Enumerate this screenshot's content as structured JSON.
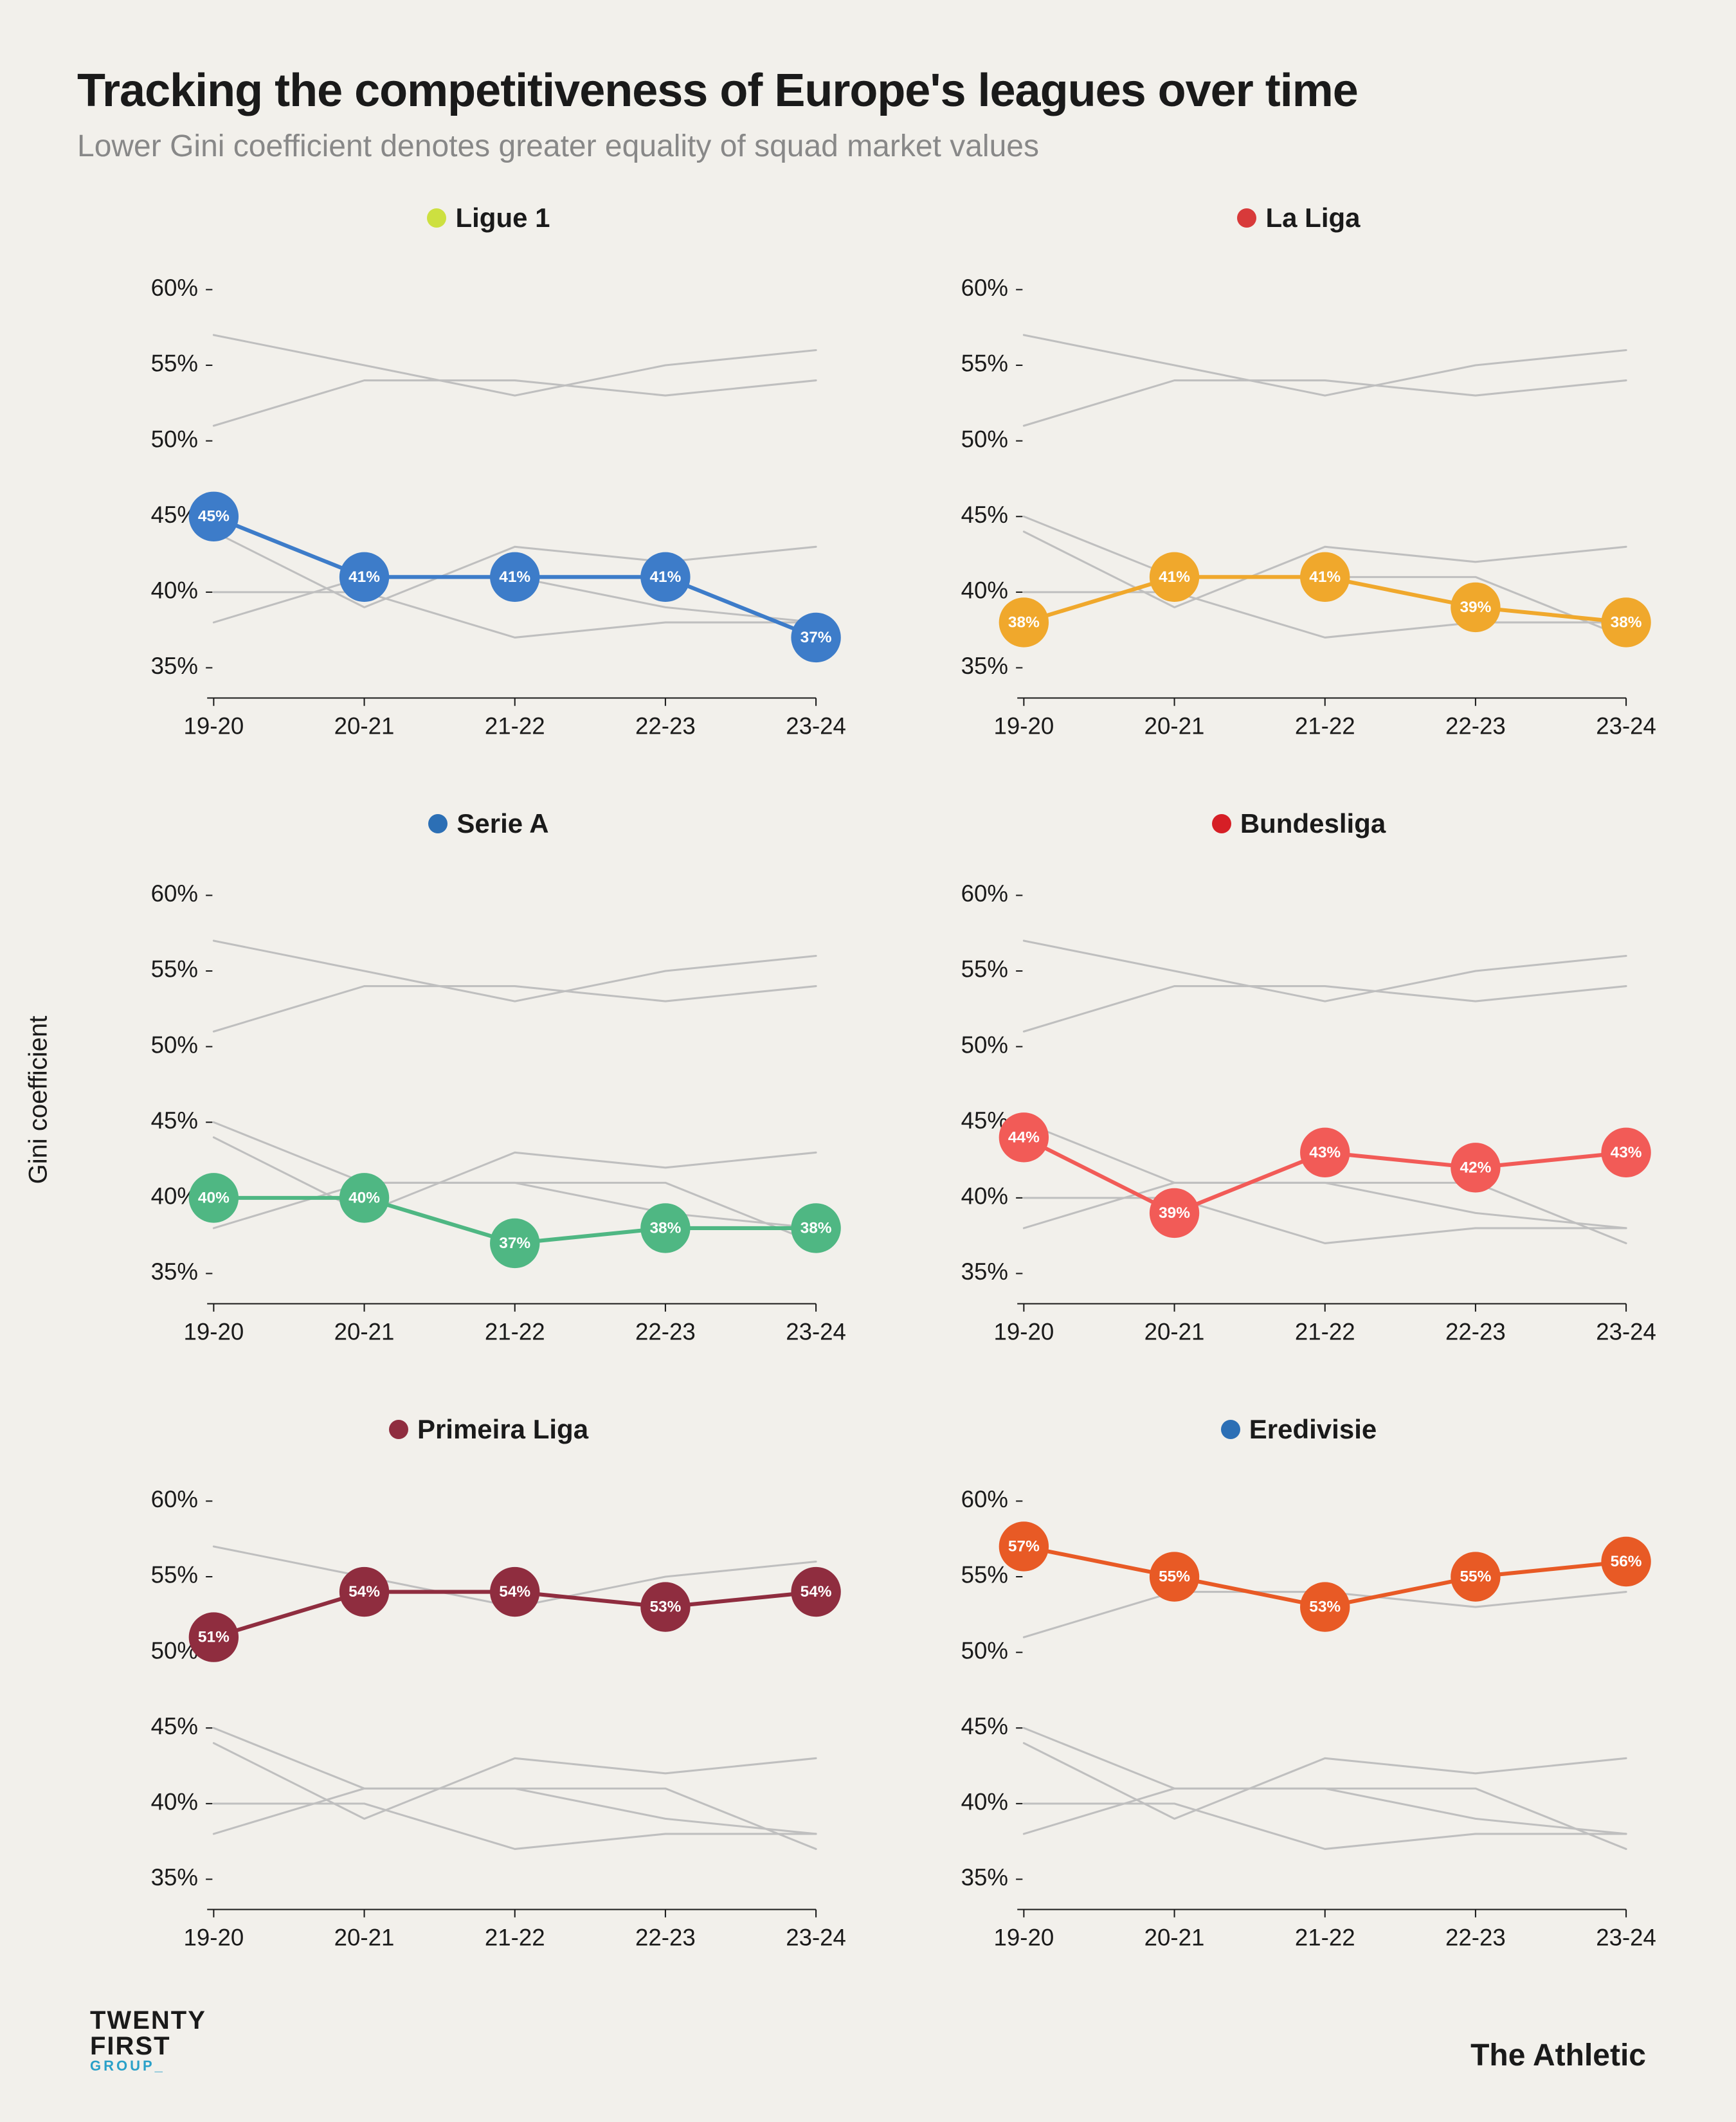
{
  "title": "Tracking the competitiveness of Europe's leagues over time",
  "subtitle": "Lower Gini coefficient denotes greater equality of squad market values",
  "yaxis_title": "Gini coefficient",
  "seasons": [
    "19-20",
    "20-21",
    "21-22",
    "22-23",
    "23-24"
  ],
  "ylim": [
    33,
    62
  ],
  "yticks": [
    35,
    40,
    45,
    50,
    55,
    60
  ],
  "ytick_suffix": "%",
  "background_color": "#f2f0eb",
  "ghost_line_color": "#bfbfbf",
  "ghost_line_width": 3,
  "axis_color": "#1a1a1a",
  "tick_fontsize": 36,
  "title_fontsize": 72,
  "subtitle_fontsize": 48,
  "panel_title_fontsize": 42,
  "marker_radius": 38,
  "marker_label_fontsize": 24,
  "line_width": 6,
  "leagues": [
    {
      "name": "Ligue 1",
      "color": "#3d7cc9",
      "icon_bg": "#cde040",
      "values": [
        45,
        41,
        41,
        41,
        37
      ]
    },
    {
      "name": "La Liga",
      "color": "#f0a82c",
      "icon_bg": "#d83a3a",
      "values": [
        38,
        41,
        41,
        39,
        38
      ]
    },
    {
      "name": "Serie A",
      "color": "#4fb783",
      "icon_bg": "#2c6fb5",
      "values": [
        40,
        40,
        37,
        38,
        38
      ]
    },
    {
      "name": "Bundesliga",
      "color": "#f25b57",
      "icon_bg": "#d61f26",
      "values": [
        44,
        39,
        43,
        42,
        43
      ]
    },
    {
      "name": "Primeira Liga",
      "color": "#8f2d3f",
      "icon_bg": "#8f2d3f",
      "values": [
        51,
        54,
        54,
        53,
        54
      ]
    },
    {
      "name": "Eredivisie",
      "color": "#e85a25",
      "icon_bg": "#2c6fb5",
      "values": [
        57,
        55,
        53,
        55,
        56
      ]
    }
  ],
  "footer": {
    "left_line1": "TWENTY",
    "left_line2": "FIRST",
    "left_line3": "GROUP_",
    "right": "The Athletic"
  }
}
